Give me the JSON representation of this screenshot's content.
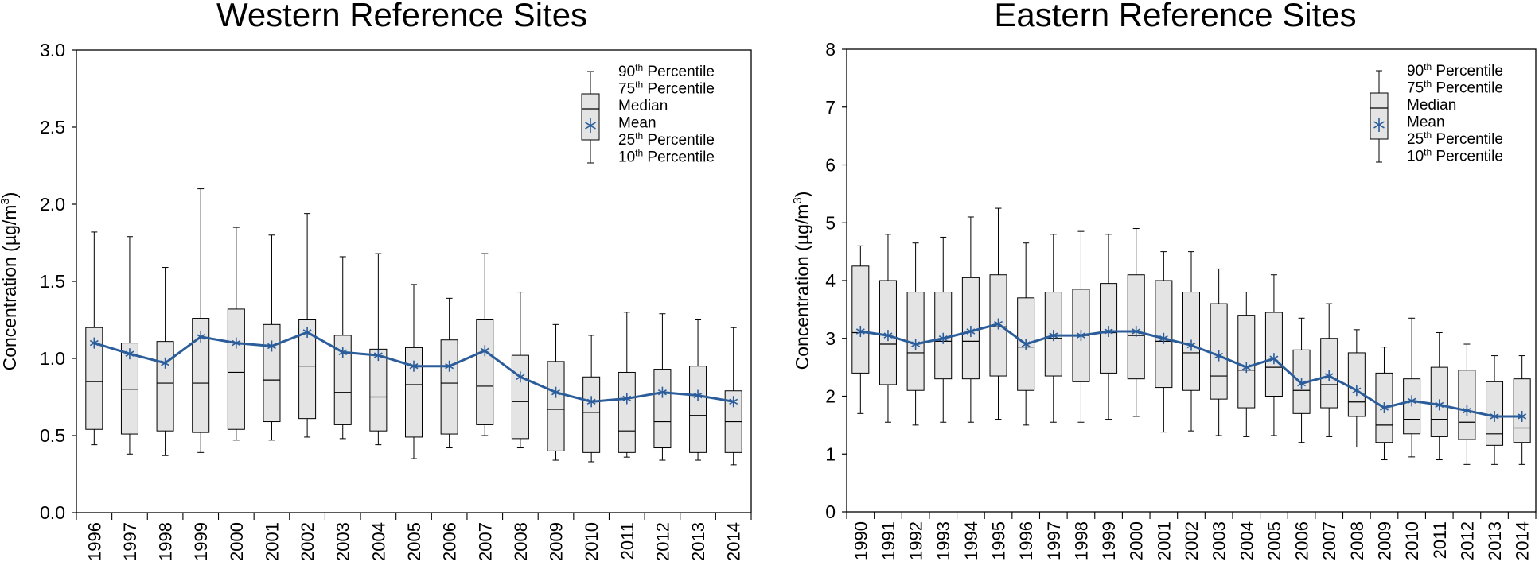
{
  "colors": {
    "box_fill": "#e4e4e4",
    "mean_line": "#2b5d9b",
    "axis": "#000000"
  },
  "legend": {
    "p90": "90",
    "p75": "75",
    "p25": "25",
    "p10": "10",
    "th": "th",
    "percentile": "Percentile",
    "median": "Median",
    "mean": "Mean"
  },
  "chart_data": [
    {
      "type": "boxplot",
      "title": "Western Reference Sites",
      "ylabel": "Concentration (µg/m",
      "ylabel_sup": "3",
      "ylabel_close": ")",
      "ylim": [
        0,
        3
      ],
      "yticks": [
        "0.0",
        "0.5",
        "1.0",
        "1.5",
        "2.0",
        "2.5",
        "3.0"
      ],
      "ytick_values": [
        0,
        0.5,
        1.0,
        1.5,
        2.0,
        2.5,
        3.0
      ],
      "categories": [
        "1996",
        "1997",
        "1998",
        "1999",
        "2000",
        "2001",
        "2002",
        "2003",
        "2004",
        "2005",
        "2006",
        "2007",
        "2008",
        "2009",
        "2010",
        "2011",
        "2012",
        "2013",
        "2014"
      ],
      "p10": [
        0.44,
        0.38,
        0.37,
        0.39,
        0.47,
        0.47,
        0.49,
        0.48,
        0.44,
        0.35,
        0.42,
        0.5,
        0.42,
        0.34,
        0.33,
        0.36,
        0.34,
        0.34,
        0.31
      ],
      "p25": [
        0.54,
        0.51,
        0.53,
        0.52,
        0.54,
        0.59,
        0.61,
        0.57,
        0.53,
        0.49,
        0.51,
        0.57,
        0.48,
        0.4,
        0.39,
        0.39,
        0.42,
        0.39,
        0.39
      ],
      "median": [
        0.85,
        0.8,
        0.84,
        0.84,
        0.91,
        0.86,
        0.95,
        0.78,
        0.75,
        0.83,
        0.84,
        0.82,
        0.72,
        0.67,
        0.65,
        0.53,
        0.59,
        0.63,
        0.59
      ],
      "p75": [
        1.2,
        1.1,
        1.11,
        1.26,
        1.32,
        1.22,
        1.25,
        1.15,
        1.06,
        1.07,
        1.12,
        1.25,
        1.02,
        0.98,
        0.88,
        0.91,
        0.93,
        0.95,
        0.79
      ],
      "p90": [
        1.82,
        1.79,
        1.59,
        2.1,
        1.85,
        1.8,
        1.94,
        1.66,
        1.68,
        1.48,
        1.39,
        1.68,
        1.43,
        1.22,
        1.15,
        1.3,
        1.29,
        1.25,
        1.2
      ],
      "mean": [
        1.1,
        1.03,
        0.97,
        1.14,
        1.1,
        1.08,
        1.17,
        1.04,
        1.02,
        0.95,
        0.95,
        1.05,
        0.88,
        0.78,
        0.72,
        0.74,
        0.78,
        0.76,
        0.72
      ]
    },
    {
      "type": "boxplot",
      "title": "Eastern Reference Sites",
      "ylabel": "Concentration (µg/m",
      "ylabel_sup": "3",
      "ylabel_close": ")",
      "ylim": [
        0,
        8
      ],
      "yticks": [
        "0",
        "1",
        "2",
        "3",
        "4",
        "5",
        "6",
        "7",
        "8"
      ],
      "ytick_values": [
        0,
        1,
        2,
        3,
        4,
        5,
        6,
        7,
        8
      ],
      "categories": [
        "1990",
        "1991",
        "1992",
        "1993",
        "1994",
        "1995",
        "1996",
        "1997",
        "1998",
        "1999",
        "2000",
        "2001",
        "2002",
        "2003",
        "2004",
        "2005",
        "2006",
        "2007",
        "2008",
        "2009",
        "2010",
        "2011",
        "2012",
        "2013",
        "2014"
      ],
      "p10": [
        1.7,
        1.55,
        1.5,
        1.55,
        1.55,
        1.6,
        1.5,
        1.55,
        1.55,
        1.6,
        1.65,
        1.38,
        1.4,
        1.32,
        1.3,
        1.32,
        1.2,
        1.3,
        1.12,
        0.9,
        0.95,
        0.9,
        0.82,
        0.82,
        0.82
      ],
      "p25": [
        2.4,
        2.2,
        2.1,
        2.3,
        2.3,
        2.35,
        2.1,
        2.35,
        2.25,
        2.4,
        2.3,
        2.15,
        2.1,
        1.95,
        1.8,
        2.0,
        1.7,
        1.8,
        1.65,
        1.2,
        1.35,
        1.3,
        1.25,
        1.15,
        1.2
      ],
      "median": [
        3.1,
        2.9,
        2.75,
        2.95,
        2.95,
        3.2,
        2.85,
        3.0,
        3.05,
        3.1,
        3.05,
        2.95,
        2.75,
        2.35,
        2.45,
        2.5,
        2.1,
        2.2,
        1.9,
        1.5,
        1.6,
        1.6,
        1.55,
        1.35,
        1.45
      ],
      "p75": [
        4.25,
        4.0,
        3.8,
        3.8,
        4.05,
        4.1,
        3.7,
        3.8,
        3.85,
        3.95,
        4.1,
        4.0,
        3.8,
        3.6,
        3.4,
        3.45,
        2.8,
        3.0,
        2.75,
        2.4,
        2.3,
        2.5,
        2.45,
        2.25,
        2.3
      ],
      "p90": [
        4.6,
        4.8,
        4.65,
        4.75,
        5.1,
        5.25,
        4.65,
        4.8,
        4.85,
        4.8,
        4.9,
        4.5,
        4.5,
        4.2,
        3.8,
        4.1,
        3.35,
        3.6,
        3.15,
        2.85,
        3.35,
        3.1,
        2.9,
        2.7,
        2.7
      ],
      "mean": [
        3.12,
        3.05,
        2.9,
        3.0,
        3.12,
        3.25,
        2.9,
        3.05,
        3.05,
        3.12,
        3.12,
        3.0,
        2.88,
        2.7,
        2.5,
        2.65,
        2.22,
        2.35,
        2.1,
        1.8,
        1.92,
        1.85,
        1.75,
        1.65,
        1.65
      ]
    }
  ]
}
